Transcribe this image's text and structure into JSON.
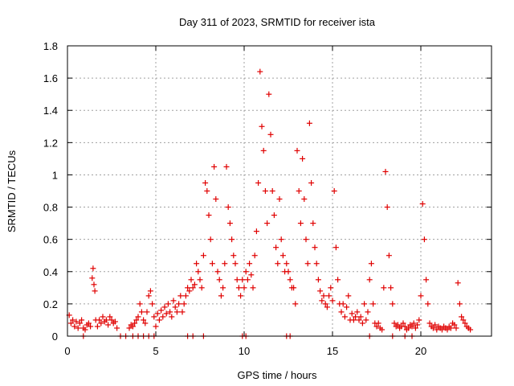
{
  "chart_data": {
    "type": "scatter",
    "title": "Day 311 of 2023, SRMTID for receiver ista",
    "xlabel": "GPS time / hours",
    "ylabel": "SRMTID / TECUs",
    "xlim": [
      0,
      24
    ],
    "ylim": [
      0,
      1.8
    ],
    "xticks": [
      0,
      5,
      10,
      15,
      20
    ],
    "xtick_labels": [
      "0",
      "5",
      "10",
      "15",
      "20"
    ],
    "yticks": [
      0,
      0.2,
      0.4,
      0.6,
      0.8,
      1,
      1.2,
      1.4,
      1.6,
      1.8
    ],
    "ytick_labels": [
      "0",
      "0.2",
      "0.4",
      "0.6",
      "0.8",
      "1",
      "1.2",
      "1.4",
      "1.6",
      "1.8"
    ],
    "grid": true,
    "marker": "+",
    "series": [
      {
        "name": "SRMTID",
        "color": "#e00000",
        "points": [
          [
            0.1,
            0.13
          ],
          [
            0.2,
            0.08
          ],
          [
            0.3,
            0.1
          ],
          [
            0.4,
            0.06
          ],
          [
            0.5,
            0.09
          ],
          [
            0.6,
            0.05
          ],
          [
            0.7,
            0.08
          ],
          [
            0.8,
            0.1
          ],
          [
            0.9,
            0.05
          ],
          [
            1.0,
            0.04
          ],
          [
            1.1,
            0.07
          ],
          [
            1.2,
            0.08
          ],
          [
            1.3,
            0.06
          ],
          [
            1.4,
            0.36
          ],
          [
            1.45,
            0.42
          ],
          [
            1.5,
            0.32
          ],
          [
            1.55,
            0.28
          ],
          [
            1.6,
            0.1
          ],
          [
            1.7,
            0.06
          ],
          [
            1.8,
            0.1
          ],
          [
            1.9,
            0.08
          ],
          [
            2.0,
            0.12
          ],
          [
            2.1,
            0.09
          ],
          [
            2.2,
            0.1
          ],
          [
            2.3,
            0.07
          ],
          [
            2.4,
            0.12
          ],
          [
            2.5,
            0.1
          ],
          [
            2.6,
            0.08
          ],
          [
            2.7,
            0.09
          ],
          [
            2.8,
            0.05
          ],
          [
            3.5,
            0.05
          ],
          [
            3.6,
            0.07
          ],
          [
            3.7,
            0.06
          ],
          [
            3.8,
            0.08
          ],
          [
            3.9,
            0.1
          ],
          [
            4.0,
            0.12
          ],
          [
            4.1,
            0.2
          ],
          [
            4.2,
            0.15
          ],
          [
            4.3,
            0.1
          ],
          [
            4.4,
            0.08
          ],
          [
            4.5,
            0.15
          ],
          [
            4.6,
            0.25
          ],
          [
            4.7,
            0.28
          ],
          [
            4.8,
            0.2
          ],
          [
            4.9,
            0.12
          ],
          [
            5.0,
            0.06
          ],
          [
            5.1,
            0.14
          ],
          [
            5.2,
            0.1
          ],
          [
            5.3,
            0.16
          ],
          [
            5.4,
            0.12
          ],
          [
            5.5,
            0.18
          ],
          [
            5.6,
            0.14
          ],
          [
            5.7,
            0.2
          ],
          [
            5.8,
            0.15
          ],
          [
            5.9,
            0.12
          ],
          [
            6.0,
            0.22
          ],
          [
            6.1,
            0.18
          ],
          [
            6.2,
            0.15
          ],
          [
            6.3,
            0.2
          ],
          [
            6.4,
            0.25
          ],
          [
            6.5,
            0.15
          ],
          [
            6.6,
            0.2
          ],
          [
            6.7,
            0.25
          ],
          [
            6.8,
            0.3
          ],
          [
            6.9,
            0.28
          ],
          [
            7.0,
            0.35
          ],
          [
            7.1,
            0.3
          ],
          [
            7.2,
            0.32
          ],
          [
            7.3,
            0.45
          ],
          [
            7.4,
            0.4
          ],
          [
            7.5,
            0.35
          ],
          [
            7.6,
            0.3
          ],
          [
            7.7,
            0.5
          ],
          [
            7.8,
            0.95
          ],
          [
            7.9,
            0.9
          ],
          [
            8.0,
            0.75
          ],
          [
            8.1,
            0.6
          ],
          [
            8.2,
            0.45
          ],
          [
            8.3,
            1.05
          ],
          [
            8.4,
            0.85
          ],
          [
            8.5,
            0.4
          ],
          [
            8.6,
            0.35
          ],
          [
            8.7,
            0.25
          ],
          [
            8.8,
            0.3
          ],
          [
            8.9,
            0.45
          ],
          [
            9.0,
            1.05
          ],
          [
            9.1,
            0.8
          ],
          [
            9.2,
            0.7
          ],
          [
            9.3,
            0.6
          ],
          [
            9.4,
            0.5
          ],
          [
            9.5,
            0.45
          ],
          [
            9.6,
            0.35
          ],
          [
            9.7,
            0.3
          ],
          [
            9.8,
            0.25
          ],
          [
            9.9,
            0.35
          ],
          [
            10.0,
            0.3
          ],
          [
            10.1,
            0.4
          ],
          [
            10.2,
            0.35
          ],
          [
            10.3,
            0.45
          ],
          [
            10.4,
            0.38
          ],
          [
            10.5,
            0.3
          ],
          [
            10.6,
            0.5
          ],
          [
            10.7,
            0.65
          ],
          [
            10.8,
            0.95
          ],
          [
            10.9,
            1.64
          ],
          [
            11.0,
            1.3
          ],
          [
            11.1,
            1.15
          ],
          [
            11.2,
            0.9
          ],
          [
            11.3,
            0.7
          ],
          [
            11.4,
            1.5
          ],
          [
            11.5,
            1.25
          ],
          [
            11.6,
            0.9
          ],
          [
            11.7,
            0.75
          ],
          [
            11.8,
            0.55
          ],
          [
            11.9,
            0.45
          ],
          [
            12.0,
            0.85
          ],
          [
            12.1,
            0.6
          ],
          [
            12.2,
            0.5
          ],
          [
            12.3,
            0.4
          ],
          [
            12.4,
            0.45
          ],
          [
            12.5,
            0.4
          ],
          [
            12.6,
            0.35
          ],
          [
            12.7,
            0.3
          ],
          [
            12.8,
            0.3
          ],
          [
            12.9,
            0.2
          ],
          [
            13.0,
            1.15
          ],
          [
            13.1,
            0.9
          ],
          [
            13.2,
            0.7
          ],
          [
            13.3,
            1.1
          ],
          [
            13.4,
            0.85
          ],
          [
            13.5,
            0.6
          ],
          [
            13.6,
            0.45
          ],
          [
            13.7,
            1.32
          ],
          [
            13.8,
            0.95
          ],
          [
            13.9,
            0.7
          ],
          [
            14.0,
            0.55
          ],
          [
            14.1,
            0.45
          ],
          [
            14.2,
            0.35
          ],
          [
            14.3,
            0.28
          ],
          [
            14.4,
            0.22
          ],
          [
            14.5,
            0.25
          ],
          [
            14.6,
            0.2
          ],
          [
            14.7,
            0.18
          ],
          [
            14.8,
            0.25
          ],
          [
            14.9,
            0.3
          ],
          [
            15.0,
            0.22
          ],
          [
            15.1,
            0.9
          ],
          [
            15.2,
            0.55
          ],
          [
            15.3,
            0.35
          ],
          [
            15.4,
            0.2
          ],
          [
            15.5,
            0.15
          ],
          [
            15.6,
            0.2
          ],
          [
            15.7,
            0.12
          ],
          [
            15.8,
            0.18
          ],
          [
            15.9,
            0.25
          ],
          [
            16.0,
            0.1
          ],
          [
            16.1,
            0.14
          ],
          [
            16.2,
            0.1
          ],
          [
            16.3,
            0.12
          ],
          [
            16.4,
            0.15
          ],
          [
            16.5,
            0.1
          ],
          [
            16.6,
            0.12
          ],
          [
            16.7,
            0.08
          ],
          [
            16.8,
            0.2
          ],
          [
            16.9,
            0.1
          ],
          [
            17.0,
            0.15
          ],
          [
            17.1,
            0.35
          ],
          [
            17.2,
            0.45
          ],
          [
            17.3,
            0.2
          ],
          [
            17.4,
            0.08
          ],
          [
            17.5,
            0.06
          ],
          [
            17.6,
            0.08
          ],
          [
            17.7,
            0.05
          ],
          [
            17.8,
            0.04
          ],
          [
            17.9,
            0.3
          ],
          [
            18.0,
            1.02
          ],
          [
            18.1,
            0.8
          ],
          [
            18.2,
            0.5
          ],
          [
            18.3,
            0.3
          ],
          [
            18.4,
            0.2
          ],
          [
            18.5,
            0.08
          ],
          [
            18.6,
            0.06
          ],
          [
            18.7,
            0.07
          ],
          [
            18.8,
            0.05
          ],
          [
            18.9,
            0.06
          ],
          [
            19.0,
            0.08
          ],
          [
            19.1,
            0.06
          ],
          [
            19.2,
            0.04
          ],
          [
            19.3,
            0.05
          ],
          [
            19.4,
            0.07
          ],
          [
            19.5,
            0.06
          ],
          [
            19.6,
            0.08
          ],
          [
            19.7,
            0.05
          ],
          [
            19.8,
            0.07
          ],
          [
            19.9,
            0.1
          ],
          [
            20.0,
            0.25
          ],
          [
            20.1,
            0.82
          ],
          [
            20.2,
            0.6
          ],
          [
            20.3,
            0.35
          ],
          [
            20.4,
            0.2
          ],
          [
            20.5,
            0.08
          ],
          [
            20.6,
            0.06
          ],
          [
            20.7,
            0.05
          ],
          [
            20.8,
            0.07
          ],
          [
            20.9,
            0.04
          ],
          [
            21.0,
            0.06
          ],
          [
            21.1,
            0.05
          ],
          [
            21.2,
            0.04
          ],
          [
            21.3,
            0.06
          ],
          [
            21.4,
            0.05
          ],
          [
            21.5,
            0.04
          ],
          [
            21.6,
            0.06
          ],
          [
            21.7,
            0.05
          ],
          [
            21.8,
            0.08
          ],
          [
            21.9,
            0.07
          ],
          [
            22.0,
            0.05
          ],
          [
            22.1,
            0.33
          ],
          [
            22.2,
            0.2
          ],
          [
            22.3,
            0.12
          ],
          [
            22.4,
            0.1
          ],
          [
            22.5,
            0.08
          ],
          [
            22.6,
            0.06
          ],
          [
            22.7,
            0.05
          ],
          [
            22.8,
            0.04
          ],
          [
            0.9,
            0.0
          ],
          [
            3.0,
            0.0
          ],
          [
            3.3,
            0.0
          ],
          [
            3.7,
            0.0
          ],
          [
            4.0,
            0.0
          ],
          [
            4.3,
            0.0
          ],
          [
            4.6,
            0.0
          ],
          [
            4.9,
            0.0
          ],
          [
            6.8,
            0.0
          ],
          [
            7.1,
            0.0
          ],
          [
            7.7,
            0.0
          ],
          [
            9.9,
            0.0
          ],
          [
            10.1,
            0.0
          ],
          [
            12.4,
            0.0
          ],
          [
            12.6,
            0.0
          ],
          [
            17.1,
            0.0
          ],
          [
            18.4,
            0.0
          ],
          [
            19.1,
            0.0
          ],
          [
            19.5,
            0.0
          ]
        ]
      }
    ]
  }
}
